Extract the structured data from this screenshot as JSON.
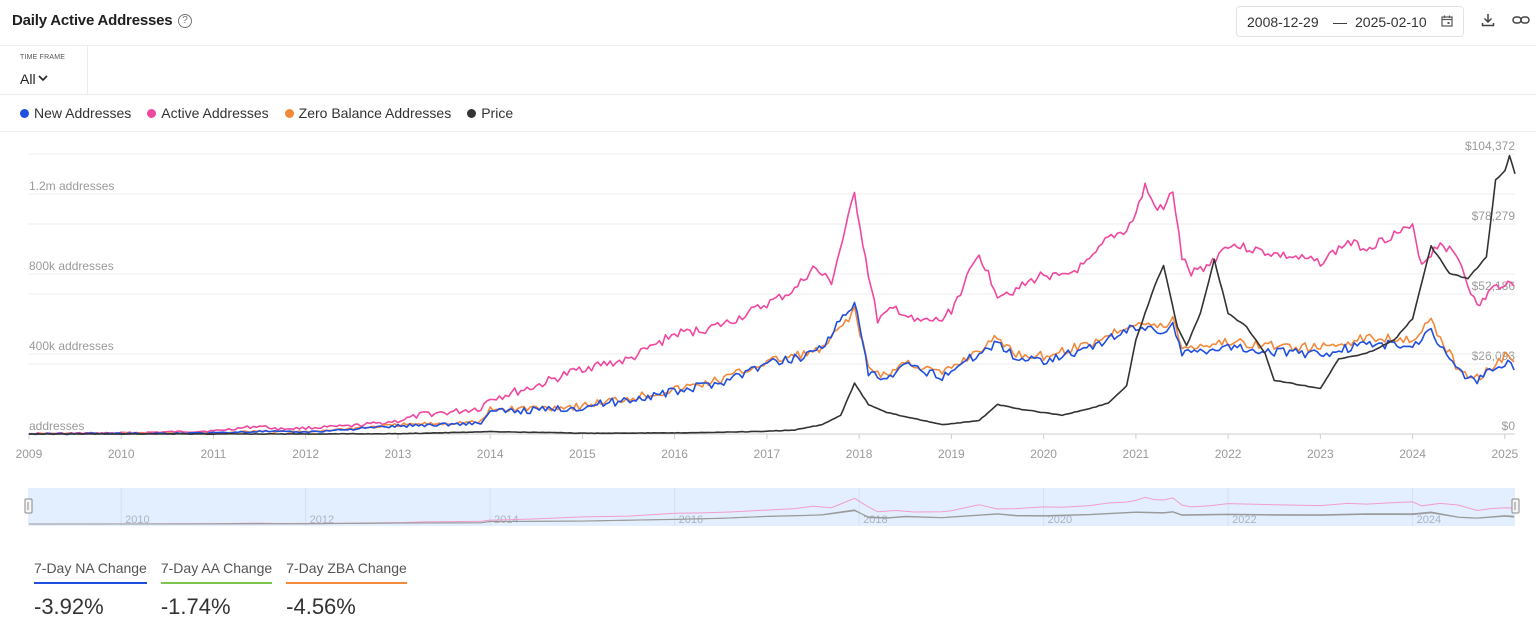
{
  "header": {
    "title": "Daily Active Addresses",
    "date_start": "2008-12-29",
    "date_separator": "—",
    "date_end": "2025-02-10"
  },
  "timeframe": {
    "label": "TIME FRAME",
    "value": "All"
  },
  "colors": {
    "new_addresses": "#1f4fe0",
    "active_addresses": "#f0479f",
    "zero_balance": "#f28a3c",
    "price": "#333333",
    "aa_change": "#7cc44e"
  },
  "legend": [
    {
      "label": "New Addresses",
      "color": "#1f4fe0"
    },
    {
      "label": "Active Addresses",
      "color": "#f0479f"
    },
    {
      "label": "Zero Balance Addresses",
      "color": "#f28a3c"
    },
    {
      "label": "Price",
      "color": "#333333"
    }
  ],
  "chart_data": {
    "type": "line",
    "x_range": [
      2008.99,
      2025.11
    ],
    "x_ticks": [
      "2009",
      "2010",
      "2011",
      "2012",
      "2013",
      "2014",
      "2015",
      "2016",
      "2017",
      "2018",
      "2019",
      "2020",
      "2021",
      "2022",
      "2023",
      "2024",
      "2025"
    ],
    "y_left": {
      "range": [
        0,
        1400000
      ],
      "ticks": [
        0,
        400000,
        800000,
        1200000
      ],
      "tick_labels": [
        "addresses",
        "400k addresses",
        "800k addresses",
        "1.2m addresses"
      ]
    },
    "y_right": {
      "range": [
        0,
        104372
      ],
      "ticks": [
        0,
        26093,
        52186,
        78279,
        104372
      ],
      "tick_labels": [
        "$0",
        "$26,093",
        "$52,186",
        "$78,279",
        "$104,372"
      ]
    },
    "series": [
      {
        "name": "Active Addresses",
        "axis": "left",
        "color": "#f0479f",
        "x": [
          2009,
          2010,
          2011,
          2011.5,
          2011.7,
          2012,
          2012.5,
          2013,
          2013.3,
          2013.6,
          2013.9,
          2014,
          2014.2,
          2014.5,
          2015,
          2015.5,
          2016,
          2016.3,
          2016.6,
          2017,
          2017.3,
          2017.5,
          2017.7,
          2017.85,
          2017.95,
          2018.1,
          2018.2,
          2018.4,
          2018.6,
          2018.9,
          2019,
          2019.3,
          2019.5,
          2019.7,
          2020,
          2020.2,
          2020.5,
          2020.7,
          2020.9,
          2021,
          2021.1,
          2021.2,
          2021.3,
          2021.4,
          2021.5,
          2021.6,
          2021.8,
          2022,
          2022.5,
          2023,
          2023.3,
          2023.5,
          2023.8,
          2024,
          2024.1,
          2024.3,
          2024.5,
          2024.7,
          2024.85,
          2025,
          2025.1
        ],
        "y": [
          2000,
          5000,
          15000,
          40000,
          25000,
          30000,
          40000,
          65000,
          100000,
          110000,
          130000,
          180000,
          200000,
          240000,
          330000,
          370000,
          500000,
          520000,
          560000,
          650000,
          720000,
          830000,
          760000,
          1020000,
          1200000,
          800000,
          570000,
          630000,
          560000,
          570000,
          620000,
          900000,
          700000,
          720000,
          800000,
          780000,
          860000,
          980000,
          1020000,
          1100000,
          1240000,
          1140000,
          1120000,
          1220000,
          880000,
          800000,
          850000,
          950000,
          900000,
          860000,
          960000,
          930000,
          1000000,
          1030000,
          850000,
          960000,
          880000,
          630000,
          720000,
          760000,
          740000
        ]
      },
      {
        "name": "Zero Balance Addresses",
        "axis": "left",
        "color": "#f28a3c",
        "x": [
          2009,
          2011,
          2011.5,
          2012,
          2013,
          2013.9,
          2014,
          2014.5,
          2015,
          2016,
          2016.5,
          2017,
          2017.4,
          2017.6,
          2017.95,
          2018.1,
          2018.3,
          2018.5,
          2018.9,
          2019,
          2019.5,
          2019.7,
          2020,
          2020.5,
          2021,
          2021.3,
          2021.4,
          2021.5,
          2022,
          2022.5,
          2023,
          2023.5,
          2024,
          2024.2,
          2024.5,
          2024.7,
          2025,
          2025.1
        ],
        "y": [
          0,
          5000,
          15000,
          10000,
          45000,
          60000,
          120000,
          130000,
          140000,
          220000,
          270000,
          360000,
          400000,
          420000,
          620000,
          330000,
          290000,
          360000,
          300000,
          330000,
          480000,
          400000,
          390000,
          450000,
          560000,
          530000,
          580000,
          430000,
          460000,
          440000,
          430000,
          480000,
          480000,
          560000,
          320000,
          280000,
          390000,
          360000
        ]
      },
      {
        "name": "New Addresses",
        "axis": "left",
        "color": "#1f4fe0",
        "x": [
          2009,
          2011,
          2011.5,
          2012,
          2013,
          2013.9,
          2014,
          2014.5,
          2015,
          2016,
          2016.5,
          2017,
          2017.4,
          2017.6,
          2017.95,
          2018.1,
          2018.3,
          2018.5,
          2018.9,
          2019,
          2019.5,
          2019.7,
          2020,
          2020.5,
          2021,
          2021.3,
          2021.4,
          2021.5,
          2022,
          2022.5,
          2023,
          2023.5,
          2024,
          2024.2,
          2024.5,
          2024.7,
          2025,
          2025.1
        ],
        "y": [
          0,
          5000,
          13000,
          9000,
          40000,
          55000,
          110000,
          120000,
          135000,
          210000,
          260000,
          350000,
          390000,
          440000,
          660000,
          300000,
          270000,
          340000,
          290000,
          320000,
          460000,
          380000,
          370000,
          430000,
          540000,
          510000,
          560000,
          400000,
          440000,
          410000,
          400000,
          450000,
          440000,
          520000,
          310000,
          270000,
          360000,
          320000
        ]
      },
      {
        "name": "Price",
        "axis": "right",
        "color": "#333333",
        "x": [
          2009,
          2010.5,
          2011,
          2012,
          2013,
          2013.9,
          2014,
          2014.5,
          2015,
          2016,
          2016.5,
          2017,
          2017.3,
          2017.6,
          2017.8,
          2017.95,
          2018.1,
          2018.3,
          2018.5,
          2018.9,
          2019,
          2019.3,
          2019.5,
          2019.7,
          2020,
          2020.2,
          2020.5,
          2020.7,
          2020.9,
          2021,
          2021.1,
          2021.2,
          2021.3,
          2021.45,
          2021.55,
          2021.7,
          2021.85,
          2022,
          2022.2,
          2022.4,
          2022.5,
          2023,
          2023.2,
          2023.5,
          2023.8,
          2024,
          2024.2,
          2024.4,
          2024.6,
          2024.8,
          2024.9,
          2025,
          2025.05,
          2025.11
        ],
        "y": [
          0,
          0,
          5,
          10,
          100,
          800,
          900,
          600,
          300,
          400,
          650,
          1000,
          1500,
          3500,
          7000,
          19000,
          11000,
          8000,
          6500,
          3500,
          3800,
          5000,
          11000,
          9500,
          8000,
          7000,
          9500,
          11500,
          18000,
          35000,
          45000,
          55000,
          63000,
          40000,
          33000,
          45000,
          65000,
          45000,
          40000,
          30000,
          20000,
          17000,
          28000,
          30000,
          35000,
          43000,
          70000,
          60000,
          58000,
          66000,
          95000,
          98000,
          104000,
          97000
        ]
      }
    ],
    "navigator_ticks": [
      "2010",
      "2012",
      "2014",
      "2016",
      "2018",
      "2020",
      "2022",
      "2024"
    ]
  },
  "cards": [
    {
      "label": "7-Day NA Change",
      "value": "-3.92%",
      "color": "#1f4fe0"
    },
    {
      "label": "7-Day AA Change",
      "value": "-1.74%",
      "color": "#7cc44e"
    },
    {
      "label": "7-Day ZBA Change",
      "value": "-4.56%",
      "color": "#f28a3c"
    }
  ]
}
